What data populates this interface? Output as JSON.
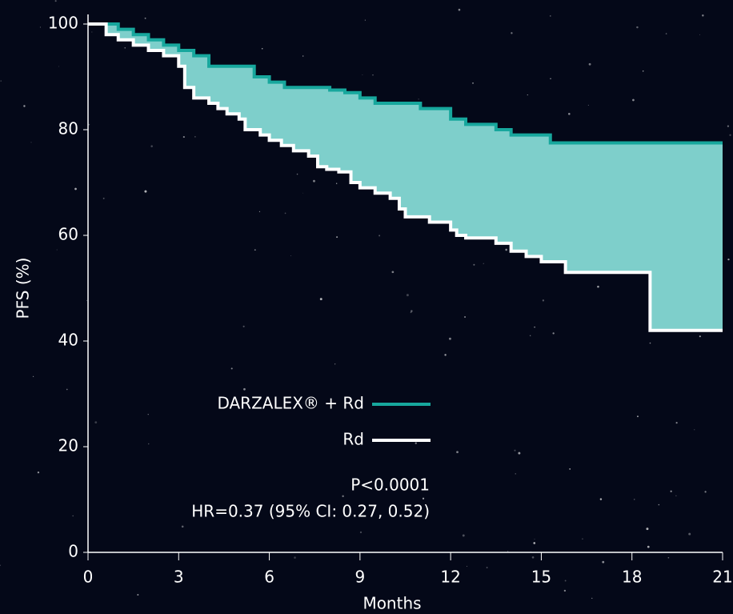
{
  "chart_data": {
    "type": "line",
    "step": true,
    "x_label": "Months",
    "y_label": "PFS (%)",
    "xlim": [
      0,
      21
    ],
    "xticks": [
      0,
      3,
      6,
      9,
      12,
      15,
      18,
      21
    ],
    "ylim": [
      0,
      100
    ],
    "yticks": [
      0,
      20,
      40,
      60,
      80,
      100
    ],
    "fill_between": "#7ecfcb",
    "legend": "center",
    "series": [
      {
        "name": "DARZALEX® + Rd",
        "color": "#17a79d",
        "x": [
          0,
          1,
          1.5,
          2,
          2.5,
          3,
          3.5,
          4,
          5.5,
          6,
          6.5,
          8,
          8.5,
          9,
          9.5,
          11,
          12,
          12.5,
          13.5,
          14,
          15.3,
          21
        ],
        "values": [
          100,
          99,
          98,
          97,
          96,
          95,
          94,
          92,
          90,
          89,
          88,
          87.5,
          87,
          86,
          85,
          84,
          82,
          81,
          80,
          79,
          77.5,
          77.5
        ]
      },
      {
        "name": "Rd",
        "color": "#ffffff",
        "x": [
          0,
          0.6,
          1,
          1.5,
          2,
          2.5,
          3,
          3.2,
          3.5,
          4,
          4.3,
          4.6,
          5,
          5.2,
          5.7,
          6,
          6.4,
          6.8,
          7.3,
          7.6,
          7.9,
          8.3,
          8.7,
          9,
          9.5,
          10,
          10.3,
          10.5,
          11.3,
          12,
          12.2,
          12.5,
          13.5,
          14,
          14.5,
          15,
          15.8,
          18.6,
          21
        ],
        "values": [
          100,
          98,
          97,
          96,
          95,
          94,
          92,
          88,
          86,
          85,
          84,
          83,
          82,
          80,
          79,
          78,
          77,
          76,
          75,
          73,
          72.5,
          72,
          70,
          69,
          68,
          67,
          65,
          63.5,
          62.5,
          61,
          60,
          59.5,
          58.5,
          57,
          56,
          55,
          53,
          42,
          42
        ]
      }
    ],
    "annotations": [
      "P<0.0001",
      "HR=0.37 (95% CI: 0.27, 0.52)"
    ]
  }
}
